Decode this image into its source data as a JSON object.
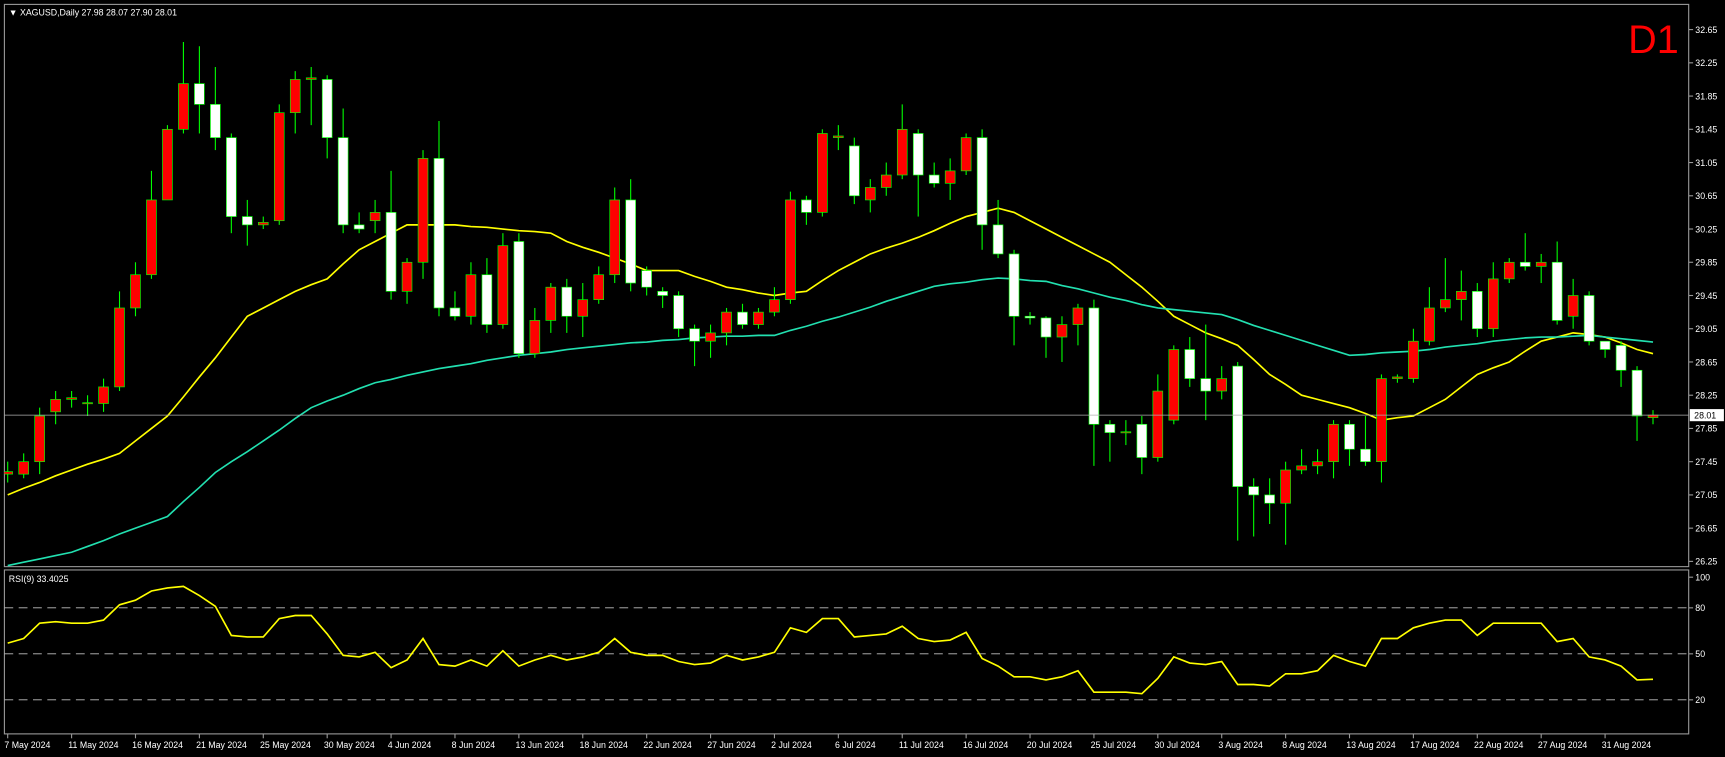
{
  "chart_data": [
    {
      "type": "candlestick",
      "title": "XAGUSD,Daily",
      "ohlc_labels": [
        "27.98",
        "28.07",
        "27.90",
        "28.01"
      ],
      "timeframe": "D1",
      "categories": [
        "7 May 2024",
        null,
        null,
        null,
        "11 May 2024",
        null,
        null,
        null,
        "16 May 2024",
        null,
        null,
        null,
        "21 May 2024",
        null,
        null,
        null,
        "25 May 2024",
        null,
        null,
        null,
        "30 May 2024",
        null,
        null,
        null,
        "4 Jun 2024",
        null,
        null,
        null,
        "8 Jun 2024",
        null,
        null,
        null,
        "13 Jun 2024",
        null,
        null,
        null,
        "18 Jun 2024",
        null,
        null,
        null,
        "22 Jun 2024",
        null,
        null,
        null,
        "27 Jun 2024",
        null,
        null,
        null,
        "2 Jul 2024",
        null,
        null,
        null,
        "6 Jul 2024",
        null,
        null,
        null,
        "11 Jul 2024",
        null,
        null,
        null,
        "16 Jul 2024",
        null,
        null,
        null,
        "20 Jul 2024",
        null,
        null,
        null,
        "25 Jul 2024",
        null,
        null,
        null,
        "30 Jul 2024",
        null,
        null,
        null,
        "3 Aug 2024",
        null,
        null,
        null,
        "8 Aug 2024",
        null,
        null,
        null,
        "13 Aug 2024",
        null,
        null,
        null,
        "17 Aug 2024",
        null,
        null,
        null,
        "22 Aug 2024",
        null,
        null,
        null,
        "27 Aug 2024",
        null,
        null,
        null,
        "31 Aug 2024",
        null,
        null,
        null
      ],
      "open": [
        27.3,
        27.3,
        27.45,
        28.05,
        28.2,
        28.15,
        28.15,
        28.35,
        29.3,
        29.7,
        30.6,
        31.45,
        32.0,
        31.75,
        31.35,
        30.4,
        30.3,
        30.35,
        31.65,
        32.05,
        32.05,
        31.35,
        30.3,
        30.35,
        30.45,
        29.5,
        29.85,
        31.1,
        29.3,
        29.2,
        29.7,
        29.1,
        30.1,
        28.75,
        29.15,
        29.55,
        29.2,
        29.4,
        29.7,
        30.6,
        29.75,
        29.5,
        29.45,
        29.05,
        28.9,
        29.0,
        29.25,
        29.1,
        29.25,
        29.4,
        30.6,
        30.45,
        31.35,
        31.25,
        30.6,
        30.75,
        30.9,
        31.4,
        30.9,
        30.8,
        30.95,
        31.35,
        30.3,
        29.95,
        29.2,
        29.18,
        28.95,
        29.1,
        29.3,
        27.9,
        27.8,
        27.9,
        27.5,
        27.95,
        28.8,
        28.45,
        28.3,
        28.6,
        27.15,
        27.05,
        26.95,
        27.35,
        27.4,
        27.45,
        27.9,
        27.6,
        27.45,
        28.45,
        28.45,
        28.9,
        29.3,
        29.4,
        29.5,
        29.05,
        29.65,
        29.85,
        29.8,
        29.85,
        29.2,
        29.45,
        28.9,
        28.85,
        28.55,
        27.98
      ],
      "high": [
        27.45,
        27.55,
        28.1,
        28.3,
        28.3,
        28.25,
        28.45,
        29.5,
        29.85,
        30.95,
        31.5,
        32.5,
        32.45,
        32.2,
        31.4,
        30.6,
        30.4,
        31.75,
        32.15,
        32.2,
        32.1,
        31.7,
        30.45,
        30.6,
        30.95,
        29.9,
        31.2,
        31.55,
        29.5,
        29.85,
        29.9,
        30.2,
        30.2,
        29.3,
        29.6,
        29.65,
        29.6,
        29.8,
        30.75,
        30.85,
        29.8,
        29.55,
        29.5,
        29.1,
        29.1,
        29.3,
        29.35,
        29.3,
        29.55,
        30.7,
        30.65,
        31.45,
        31.5,
        31.35,
        30.85,
        31.05,
        31.75,
        31.45,
        31.05,
        31.1,
        31.4,
        31.45,
        30.6,
        30.0,
        29.25,
        29.2,
        29.2,
        29.35,
        29.4,
        27.95,
        27.95,
        28.0,
        28.5,
        28.85,
        28.95,
        29.1,
        28.6,
        28.65,
        27.25,
        27.25,
        27.45,
        27.6,
        27.6,
        27.95,
        27.95,
        28.0,
        28.5,
        28.5,
        29.05,
        29.55,
        29.9,
        29.75,
        29.6,
        29.85,
        29.9,
        30.2,
        29.95,
        30.1,
        29.65,
        29.5,
        28.9,
        28.9,
        28.6,
        28.07
      ],
      "low": [
        27.2,
        27.25,
        27.3,
        27.9,
        28.1,
        28.0,
        28.05,
        28.3,
        29.2,
        29.65,
        30.6,
        31.4,
        31.4,
        31.2,
        30.2,
        30.05,
        30.25,
        30.3,
        31.4,
        31.5,
        31.1,
        30.2,
        30.2,
        30.2,
        29.4,
        29.35,
        29.65,
        29.2,
        29.15,
        29.1,
        29.0,
        29.05,
        28.7,
        28.7,
        29.0,
        29.0,
        28.95,
        29.35,
        29.6,
        29.5,
        29.45,
        29.3,
        28.95,
        28.6,
        28.7,
        28.85,
        29.05,
        29.05,
        29.2,
        29.35,
        30.3,
        30.4,
        31.2,
        30.55,
        30.45,
        30.65,
        30.85,
        30.4,
        30.75,
        30.6,
        30.9,
        30.0,
        29.9,
        28.85,
        29.1,
        28.7,
        28.65,
        28.85,
        27.4,
        27.45,
        27.65,
        27.3,
        27.45,
        27.9,
        28.35,
        27.95,
        28.2,
        26.5,
        26.55,
        26.7,
        26.45,
        27.3,
        27.3,
        27.25,
        27.4,
        27.4,
        27.2,
        28.4,
        28.4,
        28.85,
        29.25,
        29.15,
        28.95,
        28.95,
        29.6,
        29.75,
        29.6,
        29.1,
        29.05,
        28.85,
        28.7,
        28.35,
        27.7,
        27.9
      ],
      "close": [
        27.33,
        27.45,
        28.0,
        28.2,
        28.22,
        28.16,
        28.35,
        29.3,
        29.7,
        30.6,
        31.45,
        32.0,
        31.75,
        31.35,
        30.4,
        30.3,
        30.33,
        31.65,
        32.05,
        32.07,
        31.35,
        30.3,
        30.25,
        30.45,
        29.5,
        29.85,
        31.1,
        29.3,
        29.2,
        29.7,
        29.1,
        30.05,
        28.75,
        29.15,
        29.55,
        29.2,
        29.4,
        29.7,
        30.6,
        29.6,
        29.55,
        29.45,
        29.05,
        28.9,
        29.0,
        29.25,
        29.1,
        29.25,
        29.4,
        30.6,
        30.45,
        31.4,
        31.37,
        30.65,
        30.75,
        30.9,
        31.45,
        30.9,
        30.8,
        30.95,
        31.35,
        30.3,
        29.95,
        29.2,
        29.18,
        28.95,
        29.1,
        29.3,
        27.9,
        27.8,
        27.81,
        27.5,
        28.3,
        28.8,
        28.45,
        28.3,
        28.45,
        27.15,
        27.05,
        26.95,
        27.35,
        27.4,
        27.45,
        27.9,
        27.6,
        27.45,
        28.45,
        28.47,
        28.9,
        29.3,
        29.4,
        29.5,
        29.05,
        29.65,
        29.85,
        29.8,
        29.85,
        29.15,
        29.45,
        28.9,
        28.8,
        28.55,
        28.0,
        28.01
      ],
      "up_color": "#ff0000",
      "down_color": "#ffffff",
      "wick_color": "#00ff00",
      "series": [
        {
          "color": "#ffff00",
          "values": [
            27.05,
            27.13,
            27.2,
            27.28,
            27.35,
            27.42,
            27.48,
            27.55,
            27.7,
            27.85,
            28.0,
            28.23,
            28.47,
            28.7,
            28.95,
            29.2,
            29.3,
            29.4,
            29.5,
            29.58,
            29.65,
            29.83,
            30.0,
            30.1,
            30.2,
            30.3,
            30.3,
            30.3,
            30.3,
            30.28,
            30.27,
            30.25,
            30.23,
            30.22,
            30.2,
            30.1,
            30.03,
            29.97,
            29.9,
            29.83,
            29.75,
            29.75,
            29.75,
            29.68,
            29.62,
            29.55,
            29.52,
            29.48,
            29.45,
            29.48,
            29.5,
            29.63,
            29.75,
            29.85,
            29.95,
            30.02,
            30.08,
            30.15,
            30.23,
            30.32,
            30.4,
            30.45,
            30.5,
            30.45,
            30.35,
            30.25,
            30.15,
            30.05,
            29.95,
            29.85,
            29.7,
            29.55,
            29.38,
            29.2,
            29.1,
            29.0,
            28.93,
            28.85,
            28.68,
            28.5,
            28.38,
            28.25,
            28.2,
            28.15,
            28.1,
            28.03,
            27.95,
            27.98,
            28.0,
            28.1,
            28.2,
            28.35,
            28.5,
            28.58,
            28.65,
            28.78,
            28.9,
            28.95,
            29.0,
            28.98,
            28.95,
            28.88,
            28.8,
            28.75
          ]
        },
        {
          "color": "#22e0b0",
          "values": [
            26.2,
            26.24,
            26.28,
            26.32,
            26.36,
            26.43,
            26.5,
            26.58,
            26.65,
            26.72,
            26.79,
            26.97,
            27.14,
            27.32,
            27.45,
            27.57,
            27.7,
            27.83,
            27.97,
            28.1,
            28.18,
            28.25,
            28.33,
            28.4,
            28.44,
            28.49,
            28.53,
            28.57,
            28.6,
            28.63,
            28.67,
            28.7,
            28.73,
            28.75,
            28.77,
            28.8,
            28.82,
            28.84,
            28.86,
            28.88,
            28.89,
            28.91,
            28.92,
            28.94,
            28.95,
            28.96,
            28.96,
            28.97,
            28.97,
            29.03,
            29.08,
            29.14,
            29.19,
            29.25,
            29.31,
            29.38,
            29.44,
            29.5,
            29.56,
            29.59,
            29.61,
            29.64,
            29.66,
            29.65,
            29.63,
            29.62,
            29.57,
            29.53,
            29.48,
            29.43,
            29.39,
            29.34,
            29.3,
            29.28,
            29.26,
            29.24,
            29.22,
            29.16,
            29.09,
            29.03,
            28.97,
            28.91,
            28.85,
            28.79,
            28.73,
            28.74,
            28.76,
            28.77,
            28.78,
            28.8,
            28.83,
            28.85,
            28.87,
            28.9,
            28.92,
            28.94,
            28.95,
            28.95,
            28.96,
            28.97,
            28.95,
            28.93,
            28.91,
            28.89
          ]
        }
      ],
      "ylim": [
        26.2,
        32.94
      ],
      "yticks": [
        26.25,
        26.65,
        27.05,
        27.45,
        27.85,
        28.25,
        28.65,
        29.05,
        29.45,
        29.85,
        30.25,
        30.65,
        31.05,
        31.45,
        31.85,
        32.25,
        32.65
      ]
    },
    {
      "type": "line",
      "title": "RSI(9)",
      "color": "#ffff00",
      "values": [
        57,
        60,
        70,
        71,
        70,
        70,
        72,
        82,
        85,
        91,
        93,
        94,
        88,
        81,
        62,
        61,
        61,
        73,
        75,
        75,
        63,
        49,
        48,
        51,
        41,
        46,
        60,
        43,
        42,
        46,
        42,
        52,
        42,
        46,
        49,
        46,
        48,
        51,
        60,
        51,
        49,
        49,
        45,
        43,
        44,
        49,
        46,
        48,
        51,
        67,
        64,
        73,
        73,
        61,
        62,
        63,
        68,
        60,
        58,
        59,
        64,
        47,
        42,
        35,
        35,
        33,
        35,
        39,
        25,
        25,
        25,
        24,
        34,
        48,
        44,
        43,
        45,
        30,
        30,
        29,
        37,
        37,
        39,
        49,
        45,
        42,
        60,
        60,
        67,
        70,
        72,
        72,
        62,
        70,
        70,
        70,
        70,
        58,
        60,
        48,
        46,
        42,
        33,
        33.4025
      ],
      "ylim": [
        -1.5,
        104
      ],
      "yticks": [
        20,
        50,
        80,
        100
      ],
      "levels": [
        20,
        50,
        80
      ]
    }
  ]
}
